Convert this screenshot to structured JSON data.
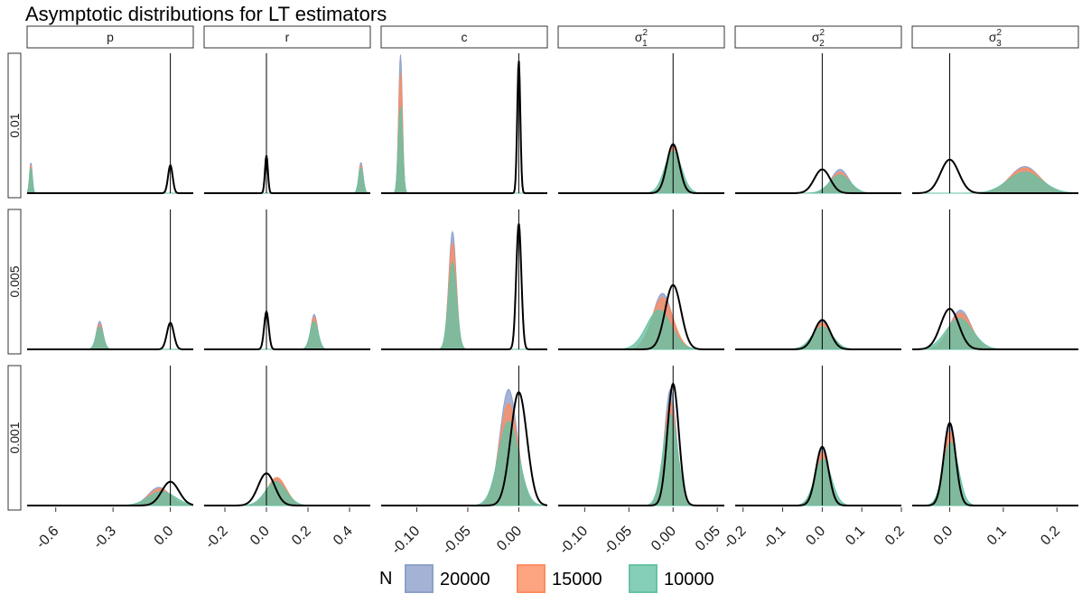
{
  "chart_data": {
    "type": "area",
    "title": "Asymptotic distributions for LT estimators",
    "columns": [
      "p",
      "r",
      "c",
      "σ",
      "σ",
      "σ"
    ],
    "column_subscripts": [
      "",
      "",
      "",
      "1",
      "2",
      "3"
    ],
    "column_superscripts": [
      "",
      "",
      "",
      "2",
      "2",
      "2"
    ],
    "rows": [
      "0.01",
      "0.005",
      "0.001"
    ],
    "x_axes": [
      {
        "range": [
          -0.75,
          0.12
        ],
        "ticks": [
          -0.6,
          -0.3,
          0.0
        ],
        "tick_labels": [
          "-0.6",
          "-0.3",
          "0.0"
        ]
      },
      {
        "range": [
          -0.3,
          0.5
        ],
        "ticks": [
          -0.2,
          0.0,
          0.2,
          0.4
        ],
        "tick_labels": [
          "-0.2",
          "0.0",
          "0.2",
          "0.4"
        ]
      },
      {
        "range": [
          -0.135,
          0.028
        ],
        "ticks": [
          -0.1,
          -0.05,
          0.0
        ],
        "tick_labels": [
          "-0.10",
          "-0.05",
          "0.00"
        ]
      },
      {
        "range": [
          -0.13,
          0.058
        ],
        "ticks": [
          -0.1,
          -0.05,
          0.0,
          0.05
        ],
        "tick_labels": [
          "-0.10",
          "-0.05",
          "0.00",
          "0.05"
        ]
      },
      {
        "range": [
          -0.22,
          0.2
        ],
        "ticks": [
          -0.2,
          -0.1,
          0.0,
          0.1,
          0.2
        ],
        "tick_labels": [
          "-0.2",
          "-0.1",
          "0.0",
          "0.1",
          "0.2"
        ]
      },
      {
        "range": [
          -0.07,
          0.24
        ],
        "ticks": [
          0.0,
          0.1,
          0.2
        ],
        "tick_labels": [
          "0.0",
          "0.1",
          "0.2"
        ]
      }
    ],
    "legend": {
      "title": "N",
      "position": "bottom",
      "entries": [
        {
          "label": "20000",
          "color": "#8DA0CB"
        },
        {
          "label": "15000",
          "color": "#FC8D62"
        },
        {
          "label": "10000",
          "color": "#66C2A5"
        }
      ]
    },
    "reference_line": {
      "x": 0,
      "color": "#000000"
    },
    "theoretical_curve_color": "#000000",
    "panels": [
      {
        "row": "0.01",
        "col": "p",
        "normal": {
          "mu": 0.0,
          "sd": 0.012,
          "peak": 0.2
        },
        "series": [
          {
            "name": "20000",
            "mu": -0.73,
            "sd": 0.007,
            "peak": 0.22
          },
          {
            "name": "15000",
            "mu": -0.73,
            "sd": 0.007,
            "peak": 0.2
          },
          {
            "name": "10000",
            "mu": -0.73,
            "sd": 0.0075,
            "peak": 0.18
          }
        ]
      },
      {
        "row": "0.01",
        "col": "r",
        "normal": {
          "mu": 0.0,
          "sd": 0.007,
          "peak": 0.27
        },
        "series": [
          {
            "name": "20000",
            "mu": 0.455,
            "sd": 0.01,
            "peak": 0.22
          },
          {
            "name": "15000",
            "mu": 0.455,
            "sd": 0.01,
            "peak": 0.2
          },
          {
            "name": "10000",
            "mu": 0.455,
            "sd": 0.011,
            "peak": 0.18
          }
        ]
      },
      {
        "row": "0.01",
        "col": "c",
        "normal": {
          "mu": 0.0,
          "sd": 0.0015,
          "peak": 0.95
        },
        "series": [
          {
            "name": "20000",
            "mu": -0.116,
            "sd": 0.0018,
            "peak": 0.99
          },
          {
            "name": "15000",
            "mu": -0.116,
            "sd": 0.0019,
            "peak": 0.86
          },
          {
            "name": "10000",
            "mu": -0.116,
            "sd": 0.002,
            "peak": 0.62
          }
        ]
      },
      {
        "row": "0.01",
        "col": "σ1",
        "normal": {
          "mu": 0.0,
          "sd": 0.007,
          "peak": 0.35
        },
        "series": [
          {
            "name": "20000",
            "mu": 0.0,
            "sd": 0.0075,
            "peak": 0.35
          },
          {
            "name": "15000",
            "mu": 0.0,
            "sd": 0.008,
            "peak": 0.33
          },
          {
            "name": "10000",
            "mu": 0.0,
            "sd": 0.0095,
            "peak": 0.3
          }
        ]
      },
      {
        "row": "0.01",
        "col": "σ2",
        "normal": {
          "mu": 0.0,
          "sd": 0.02,
          "peak": 0.17
        },
        "series": [
          {
            "name": "20000",
            "mu": 0.045,
            "sd": 0.022,
            "peak": 0.17
          },
          {
            "name": "15000",
            "mu": 0.045,
            "sd": 0.023,
            "peak": 0.15
          },
          {
            "name": "10000",
            "mu": 0.045,
            "sd": 0.026,
            "peak": 0.13
          }
        ]
      },
      {
        "row": "0.01",
        "col": "σ3",
        "normal": {
          "mu": 0.0,
          "sd": 0.017,
          "peak": 0.24
        },
        "series": [
          {
            "name": "20000",
            "mu": 0.14,
            "sd": 0.028,
            "peak": 0.19
          },
          {
            "name": "15000",
            "mu": 0.14,
            "sd": 0.029,
            "peak": 0.18
          },
          {
            "name": "10000",
            "mu": 0.14,
            "sd": 0.032,
            "peak": 0.15
          }
        ]
      },
      {
        "row": "0.005",
        "col": "p",
        "normal": {
          "mu": 0.0,
          "sd": 0.018,
          "peak": 0.19
        },
        "series": [
          {
            "name": "20000",
            "mu": -0.37,
            "sd": 0.017,
            "peak": 0.2
          },
          {
            "name": "15000",
            "mu": -0.37,
            "sd": 0.017,
            "peak": 0.18
          },
          {
            "name": "10000",
            "mu": -0.37,
            "sd": 0.019,
            "peak": 0.16
          }
        ]
      },
      {
        "row": "0.005",
        "col": "r",
        "normal": {
          "mu": 0.0,
          "sd": 0.011,
          "peak": 0.27
        },
        "series": [
          {
            "name": "20000",
            "mu": 0.23,
            "sd": 0.016,
            "peak": 0.25
          },
          {
            "name": "15000",
            "mu": 0.23,
            "sd": 0.017,
            "peak": 0.23
          },
          {
            "name": "10000",
            "mu": 0.23,
            "sd": 0.019,
            "peak": 0.2
          }
        ]
      },
      {
        "row": "0.005",
        "col": "c",
        "normal": {
          "mu": 0.0,
          "sd": 0.0025,
          "peak": 0.9
        },
        "series": [
          {
            "name": "20000",
            "mu": -0.065,
            "sd": 0.0036,
            "peak": 0.84
          },
          {
            "name": "15000",
            "mu": -0.065,
            "sd": 0.0038,
            "peak": 0.76
          },
          {
            "name": "10000",
            "mu": -0.065,
            "sd": 0.004,
            "peak": 0.62
          }
        ]
      },
      {
        "row": "0.005",
        "col": "σ1",
        "normal": {
          "mu": 0.0,
          "sd": 0.009,
          "peak": 0.46
        },
        "series": [
          {
            "name": "20000",
            "mu": -0.012,
            "sd": 0.011,
            "peak": 0.4
          },
          {
            "name": "15000",
            "mu": -0.012,
            "sd": 0.012,
            "peak": 0.37
          },
          {
            "name": "10000",
            "mu": -0.016,
            "sd": 0.014,
            "peak": 0.28
          }
        ]
      },
      {
        "row": "0.005",
        "col": "σ2",
        "normal": {
          "mu": 0.0,
          "sd": 0.02,
          "peak": 0.21
        },
        "series": [
          {
            "name": "20000",
            "mu": 0.0,
            "sd": 0.021,
            "peak": 0.2
          },
          {
            "name": "15000",
            "mu": 0.0,
            "sd": 0.022,
            "peak": 0.19
          },
          {
            "name": "10000",
            "mu": 0.0,
            "sd": 0.026,
            "peak": 0.16
          }
        ]
      },
      {
        "row": "0.005",
        "col": "σ3",
        "normal": {
          "mu": 0.0,
          "sd": 0.017,
          "peak": 0.29
        },
        "series": [
          {
            "name": "20000",
            "mu": 0.02,
            "sd": 0.02,
            "peak": 0.28
          },
          {
            "name": "15000",
            "mu": 0.02,
            "sd": 0.021,
            "peak": 0.26
          },
          {
            "name": "10000",
            "mu": 0.018,
            "sd": 0.025,
            "peak": 0.22
          }
        ]
      },
      {
        "row": "0.001",
        "col": "p",
        "normal": {
          "mu": 0.0,
          "sd": 0.045,
          "peak": 0.17
        },
        "series": [
          {
            "name": "20000",
            "mu": -0.06,
            "sd": 0.055,
            "peak": 0.13
          },
          {
            "name": "15000",
            "mu": -0.055,
            "sd": 0.058,
            "peak": 0.12
          },
          {
            "name": "10000",
            "mu": -0.045,
            "sd": 0.07,
            "peak": 0.1
          }
        ]
      },
      {
        "row": "0.001",
        "col": "r",
        "normal": {
          "mu": 0.0,
          "sd": 0.04,
          "peak": 0.23
        },
        "series": [
          {
            "name": "20000",
            "mu": 0.05,
            "sd": 0.043,
            "peak": 0.2
          },
          {
            "name": "15000",
            "mu": 0.05,
            "sd": 0.045,
            "peak": 0.2
          },
          {
            "name": "10000",
            "mu": 0.045,
            "sd": 0.05,
            "peak": 0.17
          }
        ]
      },
      {
        "row": "0.001",
        "col": "c",
        "normal": {
          "mu": 0.0,
          "sd": 0.008,
          "peak": 0.81
        },
        "series": [
          {
            "name": "20000",
            "mu": -0.01,
            "sd": 0.0085,
            "peak": 0.83
          },
          {
            "name": "15000",
            "mu": -0.01,
            "sd": 0.009,
            "peak": 0.73
          },
          {
            "name": "10000",
            "mu": -0.01,
            "sd": 0.01,
            "peak": 0.6
          }
        ]
      },
      {
        "row": "0.001",
        "col": "σ1",
        "normal": {
          "mu": 0.0,
          "sd": 0.0065,
          "peak": 0.87
        },
        "series": [
          {
            "name": "20000",
            "mu": -0.003,
            "sd": 0.0068,
            "peak": 0.83
          },
          {
            "name": "15000",
            "mu": -0.003,
            "sd": 0.0072,
            "peak": 0.74
          },
          {
            "name": "10000",
            "mu": -0.003,
            "sd": 0.0082,
            "peak": 0.65
          }
        ]
      },
      {
        "row": "0.001",
        "col": "σ2",
        "normal": {
          "mu": 0.0,
          "sd": 0.016,
          "peak": 0.42
        },
        "series": [
          {
            "name": "20000",
            "mu": 0.0,
            "sd": 0.017,
            "peak": 0.42
          },
          {
            "name": "15000",
            "mu": 0.0,
            "sd": 0.018,
            "peak": 0.38
          },
          {
            "name": "10000",
            "mu": 0.002,
            "sd": 0.021,
            "peak": 0.33
          }
        ]
      },
      {
        "row": "0.001",
        "col": "σ3",
        "normal": {
          "mu": 0.0,
          "sd": 0.011,
          "peak": 0.59
        },
        "series": [
          {
            "name": "20000",
            "mu": 0.0,
            "sd": 0.011,
            "peak": 0.59
          },
          {
            "name": "15000",
            "mu": 0.0,
            "sd": 0.012,
            "peak": 0.53
          },
          {
            "name": "10000",
            "mu": 0.002,
            "sd": 0.014,
            "peak": 0.45
          }
        ]
      }
    ]
  }
}
